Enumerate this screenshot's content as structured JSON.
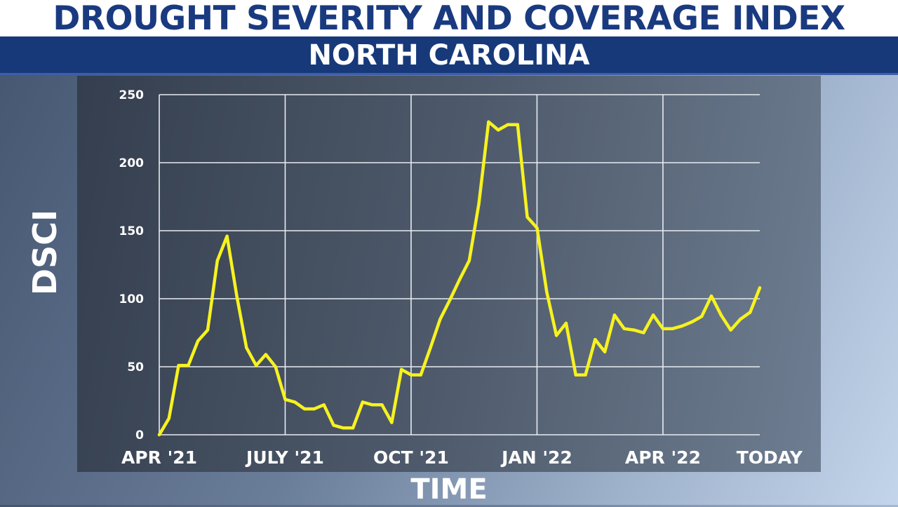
{
  "header": {
    "title": "DROUGHT SEVERITY AND COVERAGE INDEX",
    "subtitle": "NORTH CAROLINA"
  },
  "colors": {
    "title_text": "#1a3a80",
    "subtitle_band": "#17397a",
    "line": "#f7f21f",
    "grid": "#e8ecf2",
    "text": "#ffffff"
  },
  "chart_data": {
    "type": "line",
    "title": "DROUGHT SEVERITY AND COVERAGE INDEX",
    "subtitle": "NORTH CAROLINA",
    "xlabel": "TIME",
    "ylabel": "DSCI",
    "ylim": [
      0,
      250
    ],
    "yticks": [
      0,
      50,
      100,
      150,
      200,
      250
    ],
    "xticks": [
      {
        "label": "APR '21",
        "week": 0
      },
      {
        "label": "JULY '21",
        "week": 13
      },
      {
        "label": "OCT '21",
        "week": 26
      },
      {
        "label": "JAN '22",
        "week": 39
      },
      {
        "label": "APR '22",
        "week": 52
      },
      {
        "label": "TODAY",
        "week": 63
      }
    ],
    "grid": true,
    "series": [
      {
        "values": [
          0,
          12,
          51,
          51,
          69,
          77,
          128,
          146,
          102,
          64,
          51,
          59,
          50,
          26,
          24,
          19,
          19,
          22,
          7,
          5,
          5,
          24,
          22,
          22,
          9,
          48,
          44,
          44,
          64,
          85,
          99,
          114,
          128,
          170,
          230,
          224,
          228,
          228,
          160,
          152,
          105,
          73,
          82,
          44,
          44,
          70,
          61,
          88,
          78,
          77,
          75,
          88,
          78,
          78,
          80,
          83,
          87,
          102,
          88,
          77,
          85,
          90,
          108
        ]
      }
    ]
  }
}
